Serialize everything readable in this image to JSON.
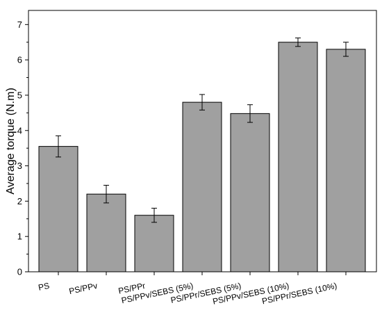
{
  "chart_data": {
    "type": "bar",
    "title": "",
    "xlabel": "",
    "ylabel": "Average torque (N.m)",
    "ylim": [
      0,
      7.4
    ],
    "yticks": [
      0,
      1,
      2,
      3,
      4,
      5,
      6,
      7
    ],
    "categories": [
      "PS",
      "PS/PPv",
      "PS/PPr",
      "PS/PPv/SEBS (5%)",
      "PS/PPr/SEBS (5%)",
      "PS/PPv/SEBS (10%)",
      "PS/PPr/SEBS (10%)"
    ],
    "values": [
      3.55,
      2.2,
      1.6,
      4.8,
      4.48,
      6.5,
      6.3
    ],
    "errors": [
      0.3,
      0.25,
      0.2,
      0.22,
      0.25,
      0.12,
      0.2
    ],
    "bar_color": "#a0a0a0",
    "grid": false
  }
}
